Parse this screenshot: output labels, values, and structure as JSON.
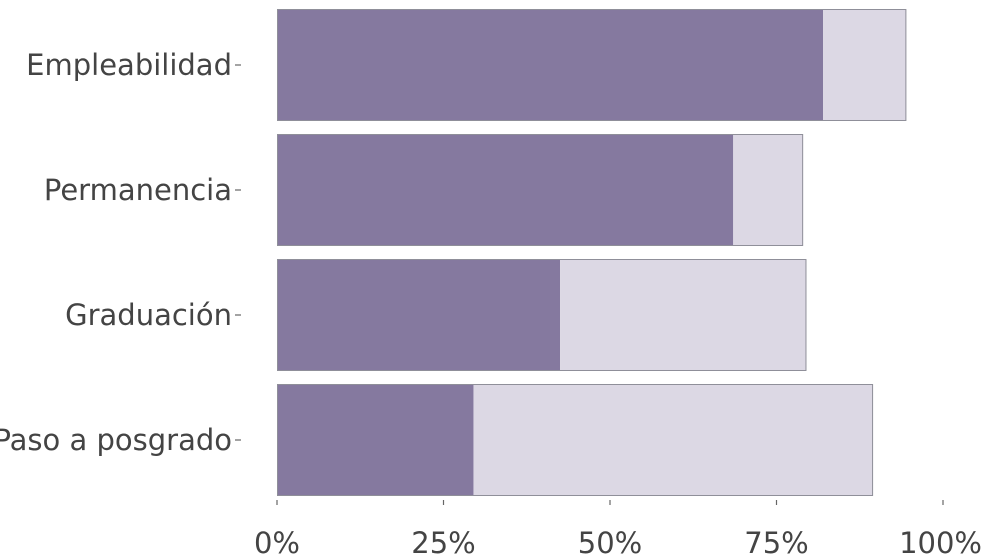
{
  "chart_data": {
    "type": "bar",
    "orientation": "horizontal",
    "stacked": true,
    "categories": [
      "Empleabilidad",
      "Permanencia",
      "Graduación",
      "Paso a posgrado"
    ],
    "series": [
      {
        "values": [
          82,
          68.5,
          42.5,
          29.5
        ],
        "color": "#85799f"
      },
      {
        "values": [
          12.5,
          10.5,
          37,
          60
        ],
        "color": "#dcd8e4"
      }
    ],
    "xlim": [
      0,
      100
    ],
    "x_ticks": [
      {
        "value": 0,
        "label": "0%"
      },
      {
        "value": 25,
        "label": "25%"
      },
      {
        "value": 50,
        "label": "50%"
      },
      {
        "value": 75,
        "label": "75%"
      },
      {
        "value": 100,
        "label": "100%"
      }
    ],
    "grid": false,
    "legend": "none",
    "title": "",
    "xlabel": "",
    "ylabel": ""
  }
}
